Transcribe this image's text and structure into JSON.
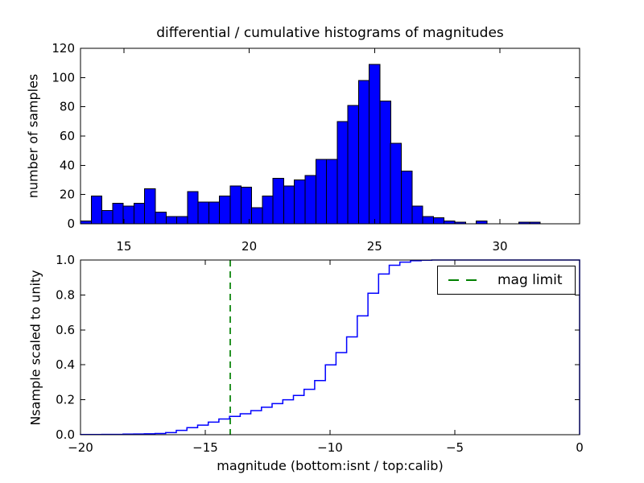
{
  "figure_title": "differential / cumulative histograms of magnitudes",
  "colors": {
    "background": "#ffffff",
    "bar_fill": "#0000ff",
    "bar_edge": "#000000",
    "cumulative_line": "#0000ff",
    "mag_limit": "#008000",
    "axis": "#000000"
  },
  "top_plot": {
    "ylabel": "number of samples",
    "xlim": [
      13.27,
      33.18
    ],
    "ylim": [
      0,
      120
    ],
    "xticks": [
      {
        "label": "15",
        "value": 15
      },
      {
        "label": "20",
        "value": 20
      },
      {
        "label": "25",
        "value": 25
      },
      {
        "label": "30",
        "value": 30
      }
    ],
    "yticks": [
      {
        "label": "0",
        "value": 0
      },
      {
        "label": "20",
        "value": 20
      },
      {
        "label": "40",
        "value": 40
      },
      {
        "label": "60",
        "value": 60
      },
      {
        "label": "80",
        "value": 80
      },
      {
        "label": "100",
        "value": 100
      },
      {
        "label": "120",
        "value": 120
      }
    ]
  },
  "bottom_plot": {
    "ylabel": "Nsample scaled to unity",
    "xlabel": "magnitude (bottom:isnt / top:calib)",
    "xlim": [
      -20,
      0
    ],
    "ylim": [
      0,
      1
    ],
    "xticks": [
      {
        "label": "−20",
        "value": -20
      },
      {
        "label": "−15",
        "value": -15
      },
      {
        "label": "−10",
        "value": -10
      },
      {
        "label": "−5",
        "value": -5
      },
      {
        "label": "0",
        "value": 0
      }
    ],
    "yticks": [
      {
        "label": "0.0",
        "value": 0
      },
      {
        "label": "0.2",
        "value": 0.2
      },
      {
        "label": "0.4",
        "value": 0.4
      },
      {
        "label": "0.6",
        "value": 0.6
      },
      {
        "label": "0.8",
        "value": 0.8
      },
      {
        "label": "1.0",
        "value": 1
      }
    ],
    "legend": {
      "label": "mag limit",
      "position": "upper right"
    },
    "mag_limit_x": -14
  },
  "chart_data": [
    {
      "type": "bar",
      "subplot": "top",
      "title": "differential / cumulative histograms of magnitudes",
      "xlabel": "",
      "ylabel": "number of samples",
      "xlim": [
        13.27,
        33.18
      ],
      "ylim": [
        0,
        120
      ],
      "grid": false,
      "bin_start": 13.27,
      "bin_width": 0.4266,
      "counts": [
        2,
        19,
        9,
        14,
        12,
        14,
        24,
        8,
        5,
        5,
        22,
        15,
        15,
        19,
        26,
        25,
        11,
        19,
        31,
        26,
        30,
        33,
        44,
        44,
        70,
        81,
        98,
        109,
        84,
        55,
        36,
        12,
        5,
        4,
        2,
        1,
        0,
        2,
        0,
        0,
        0,
        1,
        1,
        0
      ]
    },
    {
      "type": "line",
      "subplot": "bottom",
      "style": "cumulative-step-histogram",
      "xlabel": "magnitude (bottom:isnt / top:calib)",
      "ylabel": "Nsample scaled to unity",
      "xlim": [
        -20,
        0
      ],
      "ylim": [
        0,
        1
      ],
      "grid": false,
      "legend_position": "upper right",
      "bin_start": -20,
      "bin_width": 0.4266,
      "fractions": [
        0.001,
        0.001,
        0.002,
        0.002,
        0.003,
        0.004,
        0.005,
        0.007,
        0.012,
        0.025,
        0.04,
        0.055,
        0.072,
        0.09,
        0.105,
        0.12,
        0.138,
        0.157,
        0.178,
        0.2,
        0.225,
        0.26,
        0.31,
        0.4,
        0.47,
        0.56,
        0.68,
        0.81,
        0.92,
        0.97,
        0.988,
        0.996,
        0.999,
        1,
        1,
        1,
        1,
        1,
        1,
        1,
        1,
        1,
        1,
        1,
        1,
        1,
        1
      ],
      "annotations": [
        {
          "type": "vline",
          "x": -14,
          "style": "dashed",
          "color": "#008000",
          "label": "mag limit"
        }
      ]
    }
  ]
}
